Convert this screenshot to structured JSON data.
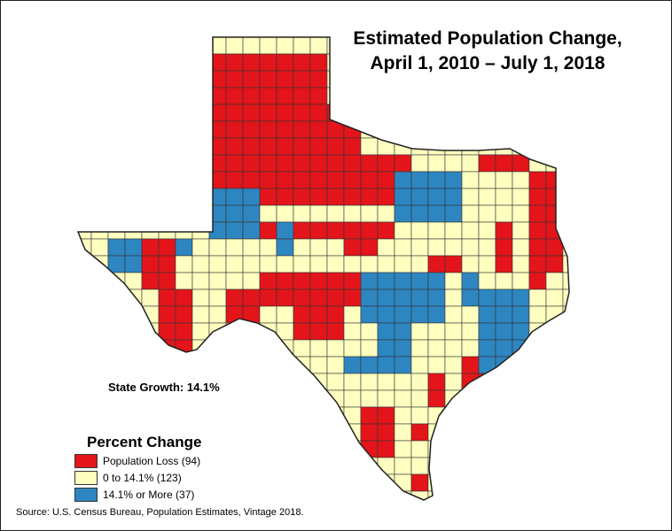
{
  "title_line1": "Estimated Population Change,",
  "title_line2": "April 1, 2010 – July 1, 2018",
  "state_growth": "State Growth: 14.1%",
  "legend": {
    "title": "Percent Change",
    "items": [
      {
        "label": "Population Loss (94)",
        "color": "#e3151a"
      },
      {
        "label": "0 to 14.1% (123)",
        "color": "#ffffc0"
      },
      {
        "label": "14.1% or More (37)",
        "color": "#2e86c1"
      }
    ]
  },
  "source": "Source: U.S. Census Bureau, Population Estimates, Vintage 2018.",
  "colors": {
    "loss": "#e3151a",
    "mid": "#ffffc0",
    "high": "#2e86c1",
    "border": "#333333"
  }
}
